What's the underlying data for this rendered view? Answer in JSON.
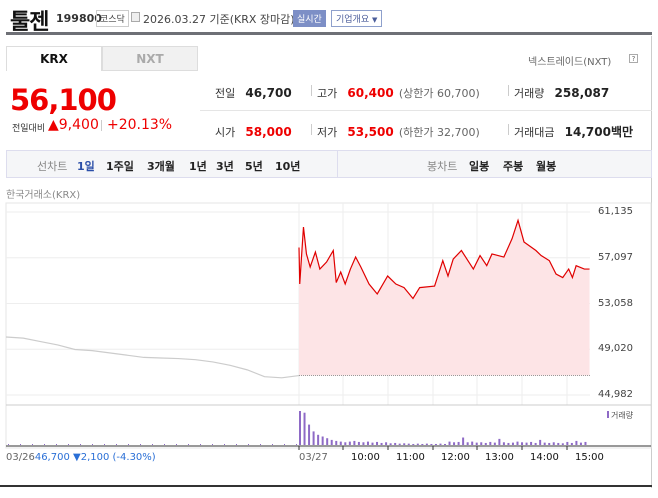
{
  "header": {
    "name": "툴젠",
    "code": "199800",
    "market": "코스닥",
    "date_note": "2026.03.27 기준(KRX 장마감)",
    "realtime_label": "실시간",
    "overview_label": "기업개요"
  },
  "tabs": [
    {
      "label": "KRX",
      "active": true
    },
    {
      "label": "NXT",
      "active": false
    }
  ],
  "nxt_label": "넥스트레이드(NXT)",
  "help_icon": "?",
  "quote": {
    "price": "56,100",
    "change_label": "전일대비",
    "change": "▲9,400",
    "change_pct": "+20.13%"
  },
  "stats": {
    "prev": {
      "label": "전일",
      "value": "46,700"
    },
    "high": {
      "label": "고가",
      "value": "60,400",
      "extra": "(상한가 60,700)"
    },
    "volume": {
      "label": "거래량",
      "value": "258,087"
    },
    "open": {
      "label": "시가",
      "value": "58,000"
    },
    "low": {
      "label": "저가",
      "value": "53,500",
      "extra": "(하한가 32,700)"
    },
    "amount": {
      "label": "거래대금",
      "value": "14,700",
      "unit": "백만"
    }
  },
  "toolbar": {
    "line_label": "선차트",
    "line_periods": [
      "1일",
      "1주일",
      "3개월",
      "1년",
      "3년",
      "5년",
      "10년"
    ],
    "selected": "1일",
    "candle_label": "봉차트",
    "candle_periods": [
      "일봉",
      "주봉",
      "월봉"
    ]
  },
  "colors": {
    "up": "#e00000",
    "down": "#2a6fd6",
    "fill": "#fde4e6",
    "prev_line": "#cccccc",
    "volume": "#8e6ac6"
  },
  "chart_data": {
    "type": "area",
    "source_label": "한국거래소(KRX)",
    "y_ticks": [
      "61,135",
      "57,097",
      "53,058",
      "49,020",
      "44,982"
    ],
    "ylim": [
      44982,
      61135
    ],
    "prev_close": 46700,
    "x_ticks": [
      "03/27",
      "10:00",
      "11:00",
      "12:00",
      "13:00",
      "14:00",
      "15:00"
    ],
    "prev_day": {
      "label": "03/26",
      "close_text": "46,700",
      "change_text": "▼2,100 (-4.30%)",
      "values": [
        50100,
        50000,
        49700,
        49400,
        49000,
        48900,
        48700,
        48500,
        48300,
        48250,
        48200,
        48100,
        47900,
        47600,
        47200,
        46600,
        46500,
        46700
      ]
    },
    "today": [
      [
        "09:00",
        58000
      ],
      [
        "09:01",
        54780
      ],
      [
        "09:06",
        59810
      ],
      [
        "09:10",
        57430
      ],
      [
        "09:15",
        56280
      ],
      [
        "09:22",
        57600
      ],
      [
        "09:28",
        56100
      ],
      [
        "09:37",
        56720
      ],
      [
        "09:46",
        57735
      ],
      [
        "09:50",
        54910
      ],
      [
        "09:56",
        55840
      ],
      [
        "10:02",
        54780
      ],
      [
        "10:09",
        56100
      ],
      [
        "10:16",
        57160
      ],
      [
        "10:23",
        56280
      ],
      [
        "10:34",
        54780
      ],
      [
        "10:45",
        53900
      ],
      [
        "10:59",
        55485
      ],
      [
        "11:10",
        54780
      ],
      [
        "11:21",
        54460
      ],
      [
        "11:33",
        53500
      ],
      [
        "11:42",
        54460
      ],
      [
        "12:02",
        54600
      ],
      [
        "12:13",
        56840
      ],
      [
        "12:20",
        55485
      ],
      [
        "12:27",
        56980
      ],
      [
        "12:38",
        57735
      ],
      [
        "12:54",
        56100
      ],
      [
        "13:03",
        57290
      ],
      [
        "13:12",
        56400
      ],
      [
        "13:19",
        57430
      ],
      [
        "13:35",
        57160
      ],
      [
        "13:46",
        58780
      ],
      [
        "13:54",
        60400
      ],
      [
        "14:02",
        58490
      ],
      [
        "14:18",
        57735
      ],
      [
        "14:25",
        57290
      ],
      [
        "14:36",
        56840
      ],
      [
        "14:45",
        55660
      ],
      [
        "14:54",
        55350
      ],
      [
        "15:02",
        56100
      ],
      [
        "15:07",
        55350
      ],
      [
        "15:12",
        56400
      ],
      [
        "15:23",
        56100
      ],
      [
        "15:30",
        56100
      ]
    ],
    "volume_label": "거래량",
    "volume_relative": [
      100,
      95,
      60,
      40,
      30,
      25,
      20,
      15,
      12,
      10,
      8,
      10,
      12,
      9,
      8,
      10,
      7,
      9,
      6,
      8,
      5,
      6,
      4,
      5,
      4,
      3,
      4,
      3,
      4,
      3,
      3,
      4,
      3,
      10,
      8,
      9,
      22,
      8,
      10,
      7,
      8,
      6,
      9,
      7,
      18,
      8,
      6,
      7,
      10,
      8,
      7,
      9,
      6,
      15,
      7,
      6,
      8,
      6,
      5,
      9,
      6,
      12,
      7,
      9
    ]
  }
}
